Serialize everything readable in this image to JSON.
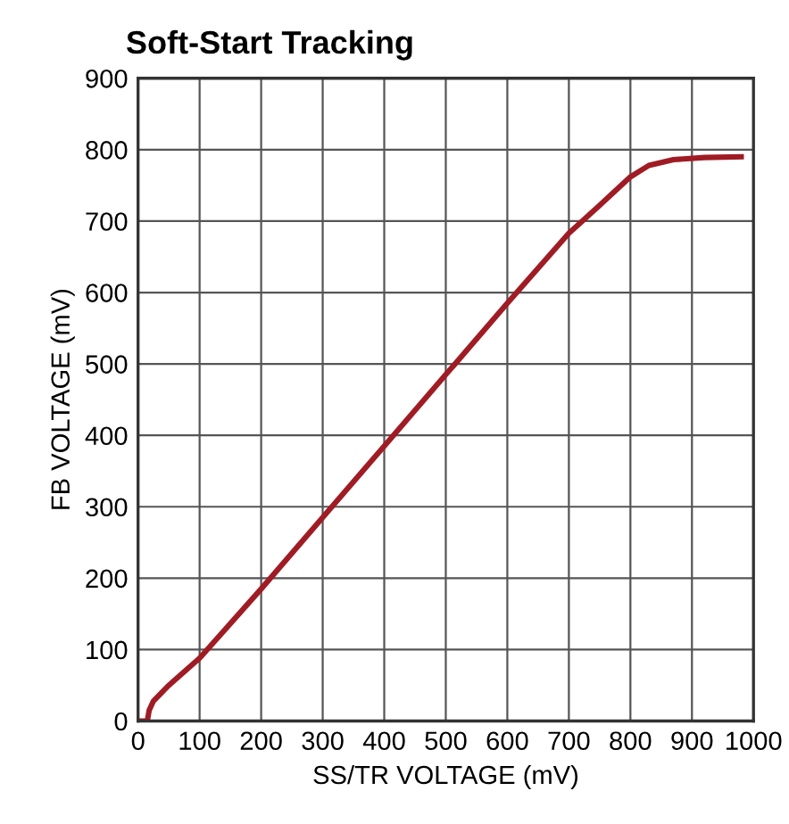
{
  "chart_data": {
    "type": "line",
    "title": "Soft-Start Tracking",
    "xlabel": "SS/TR VOLTAGE (mV)",
    "ylabel": "FB VOLTAGE (mV)",
    "series": [
      {
        "color": "#a01c24",
        "x": [
          0,
          15,
          18,
          25,
          50,
          100,
          200,
          300,
          400,
          500,
          600,
          700,
          750,
          800,
          830,
          870,
          920,
          980
        ],
        "values": [
          0,
          0,
          15,
          28,
          50,
          88,
          185,
          285,
          385,
          485,
          585,
          683,
          722,
          762,
          778,
          786,
          789,
          790
        ]
      }
    ],
    "xlim": [
      0,
      1000
    ],
    "xticks": [
      0,
      100,
      200,
      300,
      400,
      500,
      600,
      700,
      800,
      900,
      1000
    ],
    "ylim": [
      0,
      900
    ],
    "yticks": [
      0,
      100,
      200,
      300,
      400,
      500,
      600,
      700,
      800,
      900
    ],
    "grid": true,
    "marker": "none",
    "line_style": "solid"
  }
}
